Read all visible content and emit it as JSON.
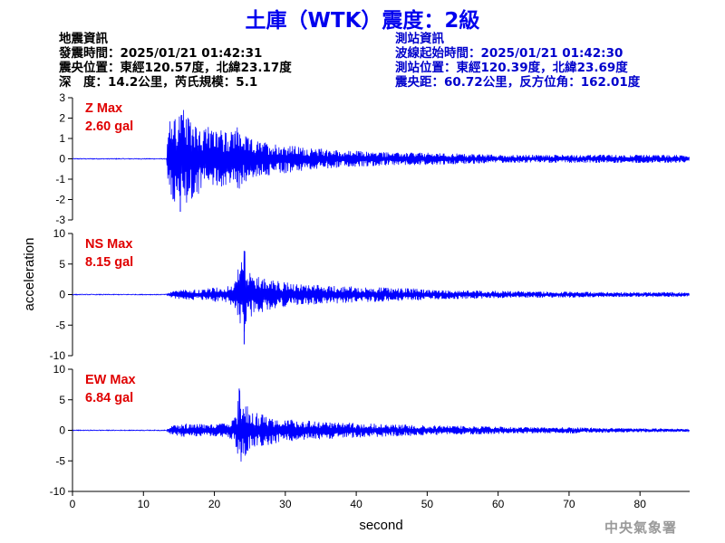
{
  "header": {
    "title": "土庫（WTK）震度：2級"
  },
  "event_info": {
    "heading": "地震資訊",
    "origin_time": "發震時間：2025/01/21 01:42:31",
    "epicenter": "震央位置：東經120.57度，北緯23.17度",
    "depth_magnitude": "深　度：14.2公里，芮氏規模：5.1"
  },
  "station_info": {
    "heading": "測站資訊",
    "wave_start_time": "波線起始時間：2025/01/21 01:42:30",
    "station_location": "測站位置：東經120.39度，北緯23.69度",
    "distance_azimuth": "震央距：60.72公里，反方位角：162.01度"
  },
  "agency": "中央氣象署",
  "colors": {
    "trace": "#0000ff",
    "max_label": "#e00000",
    "title": "#0000ee",
    "station_text": "#0000cc"
  },
  "chart_data": {
    "type": "line",
    "xlabel": "second",
    "ylabel": "acceleration",
    "xlim": [
      0,
      87
    ],
    "xticks": [
      0,
      10,
      20,
      30,
      40,
      50,
      60,
      70,
      80
    ],
    "panels": [
      {
        "component": "Z",
        "max_label": "Z Max",
        "max_value": "2.60 gal",
        "ylim": [
          -3,
          3
        ],
        "yticks": [
          -3,
          -2,
          -1,
          0,
          1,
          2,
          3
        ],
        "peak": 2.6,
        "p_arrival": 13.3,
        "s_arrival": 22.8,
        "trace": [
          [
            0,
            0
          ],
          [
            5,
            0.02
          ],
          [
            10,
            -0.02
          ],
          [
            13,
            0.05
          ],
          [
            13.3,
            0.6
          ],
          [
            13.6,
            -1.8
          ],
          [
            14,
            2.3
          ],
          [
            14.4,
            -2.4
          ],
          [
            14.8,
            2.1
          ],
          [
            15.2,
            -2.6
          ],
          [
            15.6,
            2.5
          ],
          [
            16,
            -2.2
          ],
          [
            16.5,
            1.9
          ],
          [
            17,
            -2.0
          ],
          [
            17.5,
            2.2
          ],
          [
            18,
            -1.7
          ],
          [
            18.5,
            1.5
          ],
          [
            19,
            -1.6
          ],
          [
            20,
            1.3
          ],
          [
            21,
            -1.4
          ],
          [
            22,
            1.2
          ],
          [
            23,
            -1.5
          ],
          [
            23.5,
            1.6
          ],
          [
            24,
            -1.2
          ],
          [
            25,
            1.0
          ],
          [
            26,
            -0.9
          ],
          [
            27,
            0.8
          ],
          [
            28,
            -0.8
          ],
          [
            30,
            0.7
          ],
          [
            32,
            -0.6
          ],
          [
            34,
            0.5
          ],
          [
            36,
            -0.5
          ],
          [
            38,
            0.4
          ],
          [
            40,
            -0.4
          ],
          [
            45,
            0.3
          ],
          [
            50,
            -0.3
          ],
          [
            55,
            0.25
          ],
          [
            60,
            -0.2
          ],
          [
            65,
            0.2
          ],
          [
            70,
            -0.2
          ],
          [
            75,
            0.2
          ],
          [
            80,
            -0.2
          ],
          [
            85,
            0.2
          ],
          [
            87,
            -0.15
          ]
        ]
      },
      {
        "component": "NS",
        "max_label": "NS Max",
        "max_value": "8.15 gal",
        "ylim": [
          -10,
          10
        ],
        "yticks": [
          -10,
          -5,
          0,
          5,
          10
        ],
        "peak": 8.15,
        "p_arrival": 13.3,
        "s_arrival": 22.8,
        "trace": [
          [
            0,
            0
          ],
          [
            10,
            0.02
          ],
          [
            13,
            0.02
          ],
          [
            13.3,
            0.2
          ],
          [
            14,
            -0.6
          ],
          [
            15,
            0.7
          ],
          [
            16,
            -0.8
          ],
          [
            17,
            0.9
          ],
          [
            18,
            -0.8
          ],
          [
            19,
            1.0
          ],
          [
            20,
            -1.2
          ],
          [
            21,
            1.1
          ],
          [
            22,
            -1.4
          ],
          [
            22.8,
            2.0
          ],
          [
            23.2,
            -4.0
          ],
          [
            23.5,
            4.6
          ],
          [
            23.9,
            -5.5
          ],
          [
            24.2,
            -8.15
          ],
          [
            24.6,
            4.0
          ],
          [
            25,
            -3.8
          ],
          [
            25.5,
            3.5
          ],
          [
            26,
            -3.0
          ],
          [
            27,
            2.8
          ],
          [
            28,
            -2.5
          ],
          [
            29,
            2.2
          ],
          [
            30,
            -2.0
          ],
          [
            32,
            1.7
          ],
          [
            34,
            -1.6
          ],
          [
            36,
            1.5
          ],
          [
            38,
            -1.4
          ],
          [
            40,
            1.3
          ],
          [
            42,
            -1.2
          ],
          [
            45,
            1.1
          ],
          [
            48,
            -1.0
          ],
          [
            50,
            0.8
          ],
          [
            55,
            -0.7
          ],
          [
            60,
            0.6
          ],
          [
            65,
            -0.5
          ],
          [
            70,
            0.5
          ],
          [
            75,
            -0.4
          ],
          [
            80,
            0.4
          ],
          [
            85,
            -0.4
          ],
          [
            87,
            0.3
          ]
        ]
      },
      {
        "component": "EW",
        "max_label": "EW Max",
        "max_value": "6.84 gal",
        "ylim": [
          -10,
          10
        ],
        "yticks": [
          -10,
          -5,
          0,
          5,
          10
        ],
        "peak": 6.84,
        "p_arrival": 13.3,
        "s_arrival": 22.8,
        "trace": [
          [
            0,
            0
          ],
          [
            10,
            0.02
          ],
          [
            13,
            0.02
          ],
          [
            13.3,
            0.3
          ],
          [
            14,
            -0.8
          ],
          [
            15,
            0.9
          ],
          [
            16,
            -1.2
          ],
          [
            17,
            1.0
          ],
          [
            18,
            -1.1
          ],
          [
            19,
            0.9
          ],
          [
            20,
            -1.0
          ],
          [
            21,
            1.1
          ],
          [
            22,
            -1.3
          ],
          [
            22.8,
            1.8
          ],
          [
            23.2,
            -3.5
          ],
          [
            23.5,
            6.84
          ],
          [
            23.9,
            -5.2
          ],
          [
            24.3,
            4.2
          ],
          [
            24.7,
            -3.9
          ],
          [
            25.2,
            3.3
          ],
          [
            26,
            -2.8
          ],
          [
            27,
            2.5
          ],
          [
            28,
            -2.3
          ],
          [
            29,
            2.0
          ],
          [
            30,
            -1.8
          ],
          [
            32,
            1.7
          ],
          [
            34,
            -1.5
          ],
          [
            36,
            1.4
          ],
          [
            38,
            -1.3
          ],
          [
            40,
            1.2
          ],
          [
            42,
            -1.1
          ],
          [
            45,
            1.0
          ],
          [
            48,
            -0.9
          ],
          [
            50,
            0.8
          ],
          [
            55,
            -0.7
          ],
          [
            60,
            0.6
          ],
          [
            65,
            -0.5
          ],
          [
            70,
            0.5
          ],
          [
            75,
            -0.4
          ],
          [
            80,
            0.3
          ],
          [
            85,
            -0.3
          ],
          [
            87,
            0.2
          ]
        ]
      }
    ]
  }
}
